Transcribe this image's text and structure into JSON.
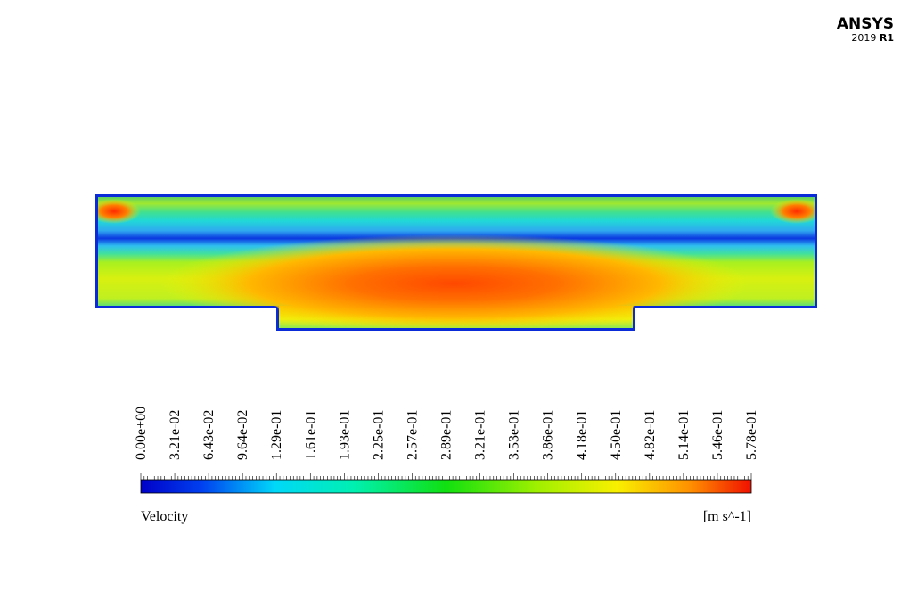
{
  "logo": {
    "brand": "ANSYS",
    "version": "2019",
    "release": "R1"
  },
  "legend": {
    "tick_labels": [
      "0.00e+00",
      "3.21e-02",
      "6.43e-02",
      "9.64e-02",
      "1.29e-01",
      "1.61e-01",
      "1.93e-01",
      "2.25e-01",
      "2.57e-01",
      "2.89e-01",
      "3.21e-01",
      "3.53e-01",
      "3.86e-01",
      "4.18e-01",
      "4.50e-01",
      "4.82e-01",
      "5.14e-01",
      "5.46e-01",
      "5.78e-01"
    ],
    "variable": "Velocity",
    "unit": "[m s^-1]"
  }
}
